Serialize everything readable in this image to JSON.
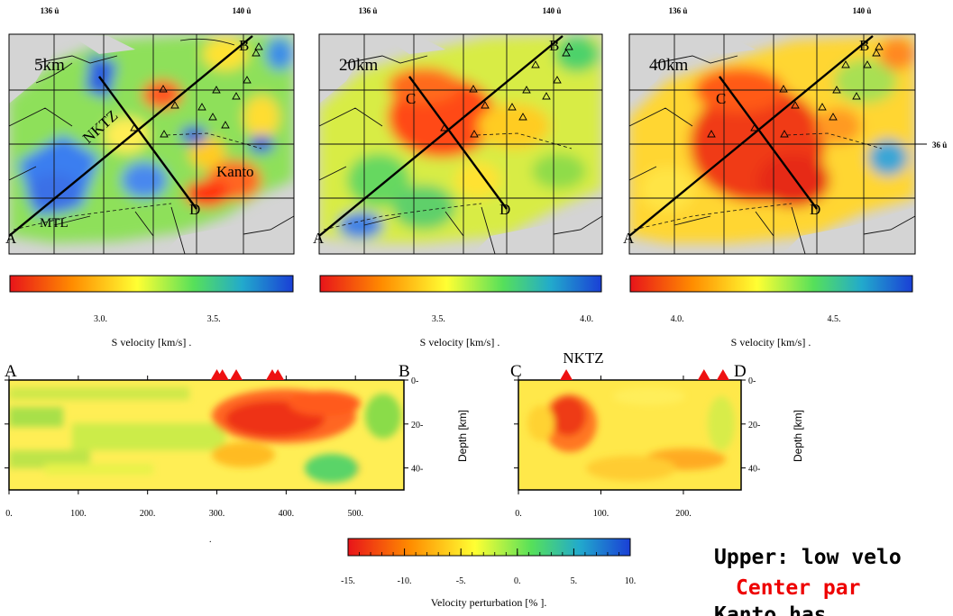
{
  "map_panels": [
    {
      "depth_label": "5km",
      "lon_labels": [
        "136 û",
        "140 û"
      ],
      "pt_a": "A",
      "pt_b": "B",
      "pt_c": "",
      "pt_d": "D",
      "annot_nktz": "NKTZ",
      "annot_mtl": "MTL",
      "annot_kanto": "Kanto"
    },
    {
      "depth_label": "20km",
      "lon_labels": [
        "136 û",
        "140 û"
      ],
      "pt_a": "A",
      "pt_b": "B",
      "pt_c": "C",
      "pt_d": "D"
    },
    {
      "depth_label": "40km",
      "lon_labels": [
        "136 û",
        "140 û"
      ],
      "pt_a": "A",
      "pt_b": "B",
      "pt_c": "C",
      "pt_d": "D",
      "lat_label": "36 û"
    }
  ],
  "colorbars": [
    {
      "label": "S velocity [km/s] .",
      "ticks": [
        "3.0.",
        "3.5."
      ],
      "range": [
        2.6,
        3.85
      ],
      "tick_values": [
        3.0,
        3.5
      ]
    },
    {
      "label": "S velocity [km/s] .",
      "ticks": [
        "3.5.",
        "4.0."
      ],
      "range": [
        3.1,
        4.05
      ],
      "tick_values": [
        3.5,
        4.0
      ]
    },
    {
      "label": "S velocity [km/s] .",
      "ticks": [
        "4.0.",
        "4.5."
      ],
      "range": [
        3.85,
        4.75
      ],
      "tick_values": [
        4.0,
        4.5
      ]
    }
  ],
  "cross_sections": [
    {
      "start": "A",
      "end": "B",
      "x_ticks": [
        "0.",
        "100.",
        "200.",
        "300.",
        "400.",
        "500."
      ],
      "depth_ticks": [
        "0-",
        "20-",
        "40-"
      ],
      "depth_label": "Depth [km]",
      "x_range": [
        0,
        570
      ]
    },
    {
      "start": "C",
      "end": "D",
      "title": "NKTZ",
      "x_ticks": [
        "0.",
        "100.",
        "200."
      ],
      "depth_ticks": [
        "0-",
        "20-",
        "40-"
      ],
      "depth_label": "Depth [km]",
      "x_range": [
        0,
        270
      ]
    }
  ],
  "perturbation_bar": {
    "label": "Velocity perturbation [% ].",
    "ticks": [
      "-15.",
      "-10.",
      "-5.",
      "0.",
      "5.",
      "10."
    ],
    "range": [
      -15,
      10
    ]
  },
  "notes": {
    "line1": "Upper: low velo",
    "line2": "Center par",
    "line3": "Kanto has"
  },
  "chart_data": [
    {
      "type": "heatmap",
      "title": "5km",
      "series": [
        {
          "name": "S velocity [km/s]",
          "range": [
            2.9,
            3.6
          ]
        }
      ],
      "colorbar_ticks": [
        3.0,
        3.5
      ]
    },
    {
      "type": "heatmap",
      "title": "20km",
      "series": [
        {
          "name": "S velocity [km/s]",
          "range": [
            3.3,
            4.0
          ]
        }
      ],
      "colorbar_ticks": [
        3.5,
        4.0
      ]
    },
    {
      "type": "heatmap",
      "title": "40km",
      "series": [
        {
          "name": "S velocity [km/s]",
          "range": [
            4.0,
            4.6
          ]
        }
      ],
      "colorbar_ticks": [
        4.0,
        4.5
      ]
    },
    {
      "type": "heatmap",
      "xlabel": "",
      "ylabel": "Depth [km]",
      "xlim": [
        0,
        570
      ],
      "ylim": [
        0,
        50
      ],
      "x_ticks": [
        0,
        100,
        200,
        300,
        400,
        500
      ],
      "y_ticks": [
        0,
        20,
        40
      ],
      "volcano_x": [
        300,
        308,
        328,
        380,
        388
      ]
    },
    {
      "type": "heatmap",
      "title": "NKTZ",
      "ylabel": "Depth [km]",
      "xlim": [
        0,
        270
      ],
      "ylim": [
        0,
        50
      ],
      "x_ticks": [
        0,
        100,
        200
      ],
      "y_ticks": [
        0,
        20,
        40
      ],
      "volcano_x": [
        58,
        225,
        248
      ]
    }
  ]
}
